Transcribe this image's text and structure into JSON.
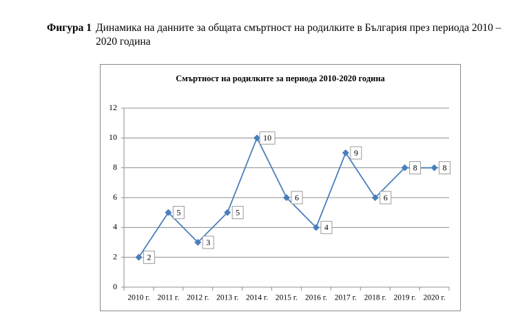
{
  "caption": {
    "label": "Фигура 1",
    "text": "Динамика на данните за общата смъртност на родилките в България през периода 2010 – 2020 година"
  },
  "chart_data": {
    "type": "line",
    "title": "Смъртност на родилките за периода 2010-2020 година",
    "categories": [
      "2010 г.",
      "2011 г.",
      "2012 г.",
      "2013 г.",
      "2014 г.",
      "2015 г.",
      "2016 г.",
      "2017 г.",
      "2018 г.",
      "2019 г.",
      "2020 г."
    ],
    "values": [
      2,
      5,
      3,
      5,
      10,
      6,
      4,
      9,
      6,
      8,
      8
    ],
    "color": "#4a7ebb",
    "ylim": [
      0,
      12
    ],
    "yticks": [
      0,
      2,
      4,
      6,
      8,
      10,
      12
    ],
    "grid": true,
    "data_labels": true
  }
}
